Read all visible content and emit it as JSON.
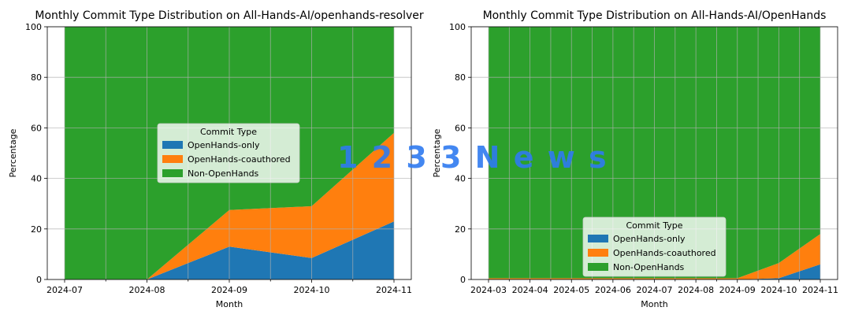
{
  "watermark": "1 2 3 3 N e w s",
  "chart_data": [
    {
      "type": "area",
      "stacked": true,
      "title": "Monthly Commit Type Distribution on All-Hands-AI/openhands-resolver",
      "xlabel": "Month",
      "ylabel": "Percentage",
      "ylim": [
        0,
        100
      ],
      "yticks": [
        0,
        20,
        40,
        60,
        80,
        100
      ],
      "grid": true,
      "legend_title": "Commit Type",
      "legend_position": "center",
      "categories": [
        "2024-07",
        "2024-08",
        "2024-09",
        "2024-10",
        "2024-11"
      ],
      "series": [
        {
          "name": "OpenHands-only",
          "color": "#1f77b4",
          "values": [
            0,
            0,
            13,
            8.5,
            23
          ]
        },
        {
          "name": "OpenHands-coauthored",
          "color": "#ff7f0e",
          "values": [
            0,
            0,
            14.5,
            20.5,
            35
          ]
        },
        {
          "name": "Non-OpenHands",
          "color": "#2ca02c",
          "values": [
            100,
            100,
            72.5,
            71,
            42
          ]
        }
      ]
    },
    {
      "type": "area",
      "stacked": true,
      "title": "Monthly Commit Type Distribution on All-Hands-AI/OpenHands",
      "xlabel": "Month",
      "ylabel": "Percentage",
      "ylim": [
        0,
        100
      ],
      "yticks": [
        0,
        20,
        40,
        60,
        80,
        100
      ],
      "grid": true,
      "legend_title": "Commit Type",
      "legend_position": "lower center",
      "categories": [
        "2024-03",
        "2024-04",
        "2024-05",
        "2024-06",
        "2024-07",
        "2024-08",
        "2024-09",
        "2024-10",
        "2024-11"
      ],
      "series": [
        {
          "name": "OpenHands-only",
          "color": "#1f77b4",
          "values": [
            0,
            0,
            0,
            0,
            0,
            0,
            0,
            0.5,
            6
          ]
        },
        {
          "name": "OpenHands-coauthored",
          "color": "#ff7f0e",
          "values": [
            0.5,
            0.5,
            0.5,
            0.5,
            0.5,
            0.5,
            0.5,
            6,
            12
          ]
        },
        {
          "name": "Non-OpenHands",
          "color": "#2ca02c",
          "values": [
            99.5,
            99.5,
            99.5,
            99.5,
            99.5,
            99.5,
            99.5,
            93.5,
            82
          ]
        }
      ]
    }
  ]
}
